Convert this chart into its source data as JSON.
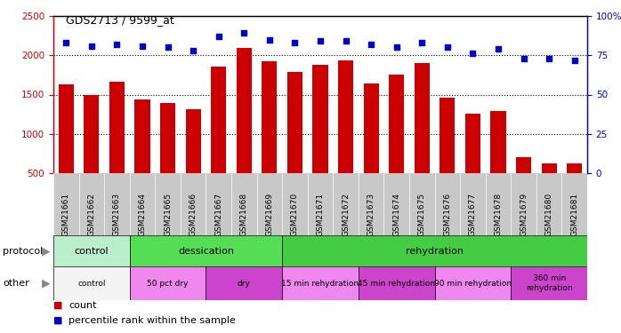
{
  "title": "GDS2713 / 9599_at",
  "samples": [
    "GSM21661",
    "GSM21662",
    "GSM21663",
    "GSM21664",
    "GSM21665",
    "GSM21666",
    "GSM21667",
    "GSM21668",
    "GSM21669",
    "GSM21670",
    "GSM21671",
    "GSM21672",
    "GSM21673",
    "GSM21674",
    "GSM21675",
    "GSM21676",
    "GSM21677",
    "GSM21678",
    "GSM21679",
    "GSM21680",
    "GSM21681"
  ],
  "counts": [
    1630,
    1500,
    1660,
    1440,
    1390,
    1310,
    1860,
    2090,
    1920,
    1790,
    1880,
    1940,
    1640,
    1750,
    1900,
    1460,
    1260,
    1290,
    700,
    620,
    620
  ],
  "percentiles": [
    83,
    81,
    82,
    81,
    80,
    78,
    87,
    89,
    85,
    83,
    84,
    84,
    82,
    80,
    83,
    80,
    76,
    79,
    73,
    73,
    72
  ],
  "ylim_left": [
    500,
    2500
  ],
  "ylim_right": [
    0,
    100
  ],
  "yticks_left": [
    500,
    1000,
    1500,
    2000,
    2500
  ],
  "yticks_right": [
    0,
    25,
    50,
    75,
    100
  ],
  "bar_color": "#cc0000",
  "dot_color": "#0000cc",
  "bg_color": "#ffffff",
  "xtick_bg": "#d0d0d0",
  "protocol_row": {
    "label": "protocol",
    "groups": [
      {
        "text": "control",
        "start": 0,
        "end": 3,
        "color": "#bbeecc"
      },
      {
        "text": "dessication",
        "start": 3,
        "end": 9,
        "color": "#55dd55"
      },
      {
        "text": "rehydration",
        "start": 9,
        "end": 21,
        "color": "#44cc44"
      }
    ]
  },
  "other_row": {
    "label": "other",
    "groups": [
      {
        "text": "control",
        "start": 0,
        "end": 3,
        "color": "#f4f4f4"
      },
      {
        "text": "50 pct dry",
        "start": 3,
        "end": 6,
        "color": "#ee88ee"
      },
      {
        "text": "dry",
        "start": 6,
        "end": 9,
        "color": "#cc44cc"
      },
      {
        "text": "15 min rehydration",
        "start": 9,
        "end": 12,
        "color": "#ee88ee"
      },
      {
        "text": "45 min rehydration",
        "start": 12,
        "end": 15,
        "color": "#cc44cc"
      },
      {
        "text": "90 min rehydration",
        "start": 15,
        "end": 18,
        "color": "#ee88ee"
      },
      {
        "text": "360 min\nrehydration",
        "start": 18,
        "end": 21,
        "color": "#cc44cc"
      }
    ]
  }
}
